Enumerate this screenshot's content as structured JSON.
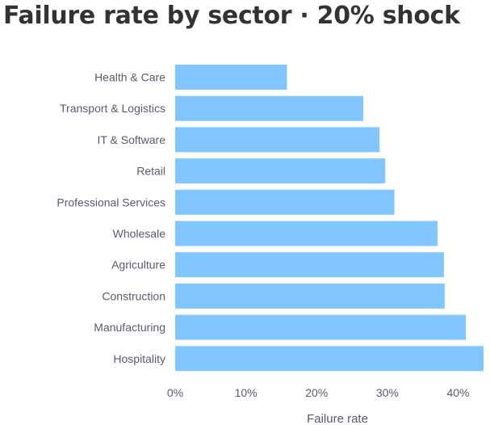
{
  "chart_data": {
    "type": "bar",
    "orientation": "horizontal",
    "title": "Failure rate by sector · 20% shock",
    "xlabel": "Failure rate",
    "ylabel": "",
    "categories": [
      "Health & Care",
      "Transport & Logistics",
      "IT & Software",
      "Retail",
      "Professional Services",
      "Wholesale",
      "Agriculture",
      "Construction",
      "Manufacturing",
      "Hospitality"
    ],
    "values": [
      15.8,
      26.6,
      28.9,
      29.7,
      31.0,
      37.1,
      38.0,
      38.1,
      41.1,
      43.6
    ],
    "value_unit": "%",
    "xlim": [
      0,
      43.6
    ],
    "xticks": [
      "0%",
      "10%",
      "20%",
      "30%",
      "40%"
    ],
    "xtick_values": [
      0,
      10,
      20,
      30,
      40
    ],
    "bar_color": "#82c6ff",
    "grid": false,
    "legend": "none"
  }
}
